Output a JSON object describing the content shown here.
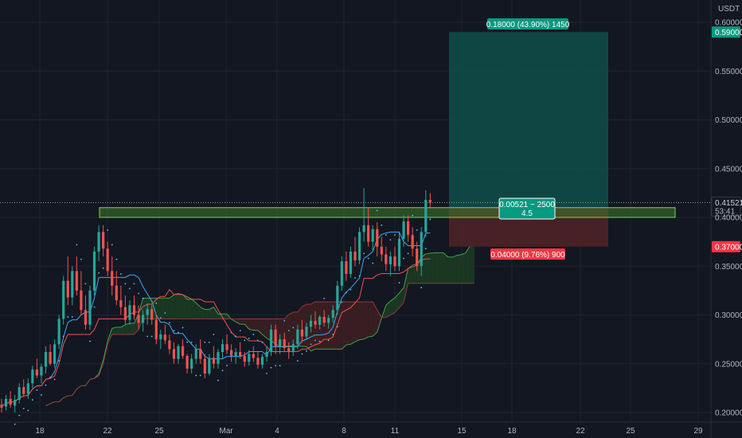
{
  "currency": "USDT",
  "colors": {
    "background": "#131722",
    "grid": "#1f2330",
    "up": "#26a69a",
    "down": "#ef5350",
    "axis_text": "#b2b5be",
    "profit_zone": "#0f4f4a",
    "loss_zone": "#4e2226",
    "resistance_zone": "#3f7a2a",
    "resistance_border": "#7fd35a",
    "tenkan": "#42a5f5",
    "kijun": "#ef5350",
    "span_a": "#43a047",
    "span_b": "#e53935",
    "price_line": "#9598a1"
  },
  "chart_data": {
    "type": "candlestick",
    "symbol_quote": "USDT",
    "y_range": [
      0.195,
      0.615
    ],
    "y_ticks": [
      "0.20000",
      "0.25000",
      "0.30000",
      "0.35000",
      "0.40000",
      "0.45000",
      "0.50000",
      "0.55000",
      "0.60000"
    ],
    "x_ticks": [
      "18",
      "22",
      "25",
      "Mar",
      "4",
      "8",
      "11",
      "15",
      "18",
      "22",
      "25",
      "29"
    ],
    "grid": true,
    "candles_ohlc": [
      [
        0.208,
        0.214,
        0.2,
        0.205
      ],
      [
        0.206,
        0.218,
        0.202,
        0.214
      ],
      [
        0.214,
        0.222,
        0.205,
        0.208
      ],
      [
        0.207,
        0.218,
        0.2,
        0.213
      ],
      [
        0.213,
        0.23,
        0.209,
        0.226
      ],
      [
        0.226,
        0.234,
        0.216,
        0.219
      ],
      [
        0.219,
        0.235,
        0.214,
        0.23
      ],
      [
        0.23,
        0.248,
        0.225,
        0.244
      ],
      [
        0.244,
        0.255,
        0.235,
        0.238
      ],
      [
        0.238,
        0.25,
        0.23,
        0.247
      ],
      [
        0.247,
        0.268,
        0.24,
        0.262
      ],
      [
        0.262,
        0.27,
        0.248,
        0.25
      ],
      [
        0.25,
        0.275,
        0.246,
        0.27
      ],
      [
        0.27,
        0.3,
        0.265,
        0.296
      ],
      [
        0.296,
        0.34,
        0.29,
        0.335
      ],
      [
        0.335,
        0.36,
        0.31,
        0.318
      ],
      [
        0.318,
        0.35,
        0.31,
        0.345
      ],
      [
        0.345,
        0.36,
        0.32,
        0.325
      ],
      [
        0.325,
        0.345,
        0.3,
        0.305
      ],
      [
        0.305,
        0.32,
        0.285,
        0.29
      ],
      [
        0.29,
        0.33,
        0.285,
        0.325
      ],
      [
        0.325,
        0.37,
        0.32,
        0.365
      ],
      [
        0.365,
        0.392,
        0.355,
        0.385
      ],
      [
        0.385,
        0.392,
        0.36,
        0.368
      ],
      [
        0.368,
        0.375,
        0.34,
        0.345
      ],
      [
        0.345,
        0.36,
        0.32,
        0.33
      ],
      [
        0.33,
        0.345,
        0.31,
        0.315
      ],
      [
        0.315,
        0.33,
        0.3,
        0.308
      ],
      [
        0.308,
        0.32,
        0.29,
        0.295
      ],
      [
        0.295,
        0.315,
        0.29,
        0.31
      ],
      [
        0.31,
        0.32,
        0.295,
        0.3
      ],
      [
        0.3,
        0.31,
        0.285,
        0.292
      ],
      [
        0.292,
        0.305,
        0.283,
        0.3
      ],
      [
        0.3,
        0.312,
        0.29,
        0.306
      ],
      [
        0.306,
        0.31,
        0.29,
        0.295
      ],
      [
        0.295,
        0.3,
        0.27,
        0.275
      ],
      [
        0.275,
        0.285,
        0.265,
        0.28
      ],
      [
        0.28,
        0.29,
        0.27,
        0.274
      ],
      [
        0.274,
        0.28,
        0.26,
        0.265
      ],
      [
        0.265,
        0.272,
        0.25,
        0.255
      ],
      [
        0.255,
        0.27,
        0.25,
        0.268
      ],
      [
        0.268,
        0.275,
        0.255,
        0.258
      ],
      [
        0.258,
        0.26,
        0.24,
        0.245
      ],
      [
        0.245,
        0.26,
        0.24,
        0.255
      ],
      [
        0.255,
        0.27,
        0.25,
        0.265
      ],
      [
        0.265,
        0.275,
        0.25,
        0.255
      ],
      [
        0.255,
        0.26,
        0.235,
        0.24
      ],
      [
        0.24,
        0.26,
        0.238,
        0.256
      ],
      [
        0.256,
        0.268,
        0.245,
        0.25
      ],
      [
        0.25,
        0.265,
        0.245,
        0.262
      ],
      [
        0.262,
        0.275,
        0.255,
        0.27
      ],
      [
        0.27,
        0.28,
        0.26,
        0.264
      ],
      [
        0.264,
        0.27,
        0.252,
        0.258
      ],
      [
        0.258,
        0.266,
        0.25,
        0.262
      ],
      [
        0.262,
        0.272,
        0.255,
        0.258
      ],
      [
        0.258,
        0.262,
        0.247,
        0.252
      ],
      [
        0.252,
        0.264,
        0.248,
        0.26
      ],
      [
        0.26,
        0.268,
        0.252,
        0.256
      ],
      [
        0.256,
        0.262,
        0.245,
        0.249
      ],
      [
        0.249,
        0.26,
        0.245,
        0.257
      ],
      [
        0.257,
        0.268,
        0.252,
        0.262
      ],
      [
        0.262,
        0.29,
        0.258,
        0.285
      ],
      [
        0.285,
        0.29,
        0.26,
        0.268
      ],
      [
        0.268,
        0.28,
        0.26,
        0.275
      ],
      [
        0.275,
        0.282,
        0.262,
        0.266
      ],
      [
        0.266,
        0.272,
        0.255,
        0.262
      ],
      [
        0.262,
        0.275,
        0.258,
        0.27
      ],
      [
        0.27,
        0.29,
        0.265,
        0.285
      ],
      [
        0.285,
        0.295,
        0.272,
        0.278
      ],
      [
        0.278,
        0.292,
        0.275,
        0.288
      ],
      [
        0.288,
        0.3,
        0.282,
        0.294
      ],
      [
        0.294,
        0.304,
        0.286,
        0.29
      ],
      [
        0.29,
        0.3,
        0.285,
        0.298
      ],
      [
        0.298,
        0.305,
        0.288,
        0.292
      ],
      [
        0.292,
        0.3,
        0.286,
        0.297
      ],
      [
        0.297,
        0.31,
        0.292,
        0.305
      ],
      [
        0.305,
        0.335,
        0.3,
        0.33
      ],
      [
        0.33,
        0.36,
        0.325,
        0.355
      ],
      [
        0.355,
        0.365,
        0.335,
        0.342
      ],
      [
        0.342,
        0.37,
        0.338,
        0.365
      ],
      [
        0.365,
        0.38,
        0.35,
        0.356
      ],
      [
        0.356,
        0.39,
        0.352,
        0.385
      ],
      [
        0.385,
        0.43,
        0.375,
        0.392
      ],
      [
        0.392,
        0.41,
        0.37,
        0.375
      ],
      [
        0.375,
        0.392,
        0.365,
        0.388
      ],
      [
        0.388,
        0.395,
        0.36,
        0.37
      ],
      [
        0.37,
        0.38,
        0.355,
        0.362
      ],
      [
        0.362,
        0.37,
        0.345,
        0.352
      ],
      [
        0.352,
        0.365,
        0.34,
        0.36
      ],
      [
        0.36,
        0.37,
        0.345,
        0.35
      ],
      [
        0.35,
        0.385,
        0.345,
        0.378
      ],
      [
        0.378,
        0.402,
        0.37,
        0.396
      ],
      [
        0.396,
        0.402,
        0.375,
        0.382
      ],
      [
        0.382,
        0.39,
        0.36,
        0.368
      ],
      [
        0.368,
        0.375,
        0.345,
        0.35
      ],
      [
        0.35,
        0.39,
        0.34,
        0.385
      ],
      [
        0.385,
        0.428,
        0.38,
        0.418
      ],
      [
        0.418,
        0.425,
        0.41,
        0.415
      ]
    ],
    "price_levels": {
      "last_price": "0.41521",
      "countdown": "53:41",
      "target": "0.59000",
      "entry": "0.41000",
      "stop": "0.37000"
    },
    "resistance_zone": {
      "top": 0.41,
      "bottom": 0.4
    },
    "position": {
      "type": "long",
      "entry": 0.41,
      "target": 0.59,
      "stop": 0.37,
      "target_label": "0.18000 (43.90%) 1450",
      "stop_label": "0.04000 (9.76%) 900",
      "info_line1": "0.00521 ~ 2500",
      "info_line2": "4.5"
    },
    "indicators": [
      "ichimoku_cloud",
      "tenkan",
      "kijun",
      "parabolic_sar"
    ]
  }
}
